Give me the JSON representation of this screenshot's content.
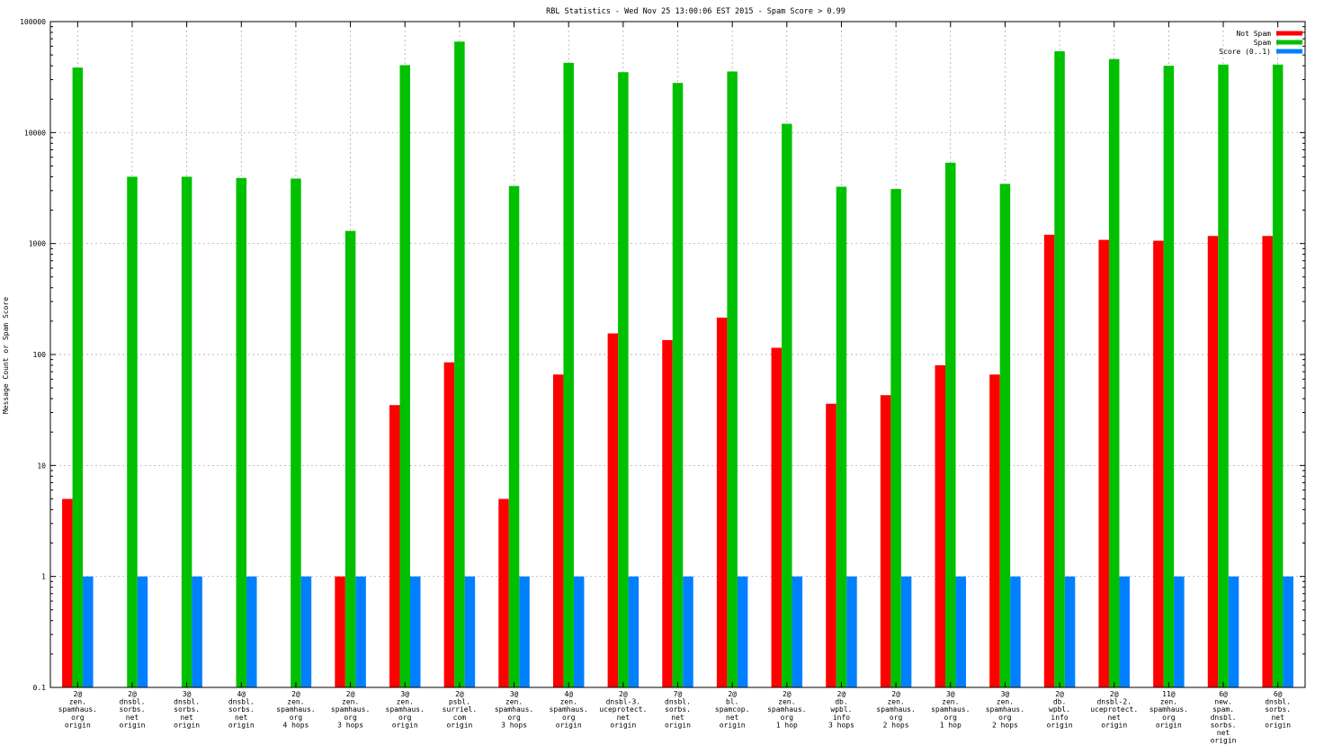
{
  "chart_data": {
    "type": "bar",
    "title": "RBL Statistics - Wed Nov 25 13:00:06 EST 2015 - Spam Score > 0.99",
    "xlabel": "",
    "ylabel": "Message Count or Spam Score",
    "yscale": "log",
    "ylim": [
      0.1,
      100000
    ],
    "yticks": [
      0.1,
      1,
      10,
      100,
      1000,
      10000,
      100000
    ],
    "ytick_labels": [
      "0.1",
      "1",
      "10",
      "100",
      "1000",
      "10000",
      "100000"
    ],
    "grid": true,
    "legend_position": "top-right",
    "categories": [
      [
        "2@",
        "zen.",
        "spamhaus.",
        "org",
        "origin"
      ],
      [
        "2@",
        "dnsbl.",
        "sorbs.",
        "net",
        "origin"
      ],
      [
        "3@",
        "dnsbl.",
        "sorbs.",
        "net",
        "origin"
      ],
      [
        "4@",
        "dnsbl.",
        "sorbs.",
        "net",
        "origin"
      ],
      [
        "2@",
        "zen.",
        "spamhaus.",
        "org",
        "4 hops"
      ],
      [
        "2@",
        "zen.",
        "spamhaus.",
        "org",
        "3 hops"
      ],
      [
        "3@",
        "zen.",
        "spamhaus.",
        "org",
        "origin"
      ],
      [
        "2@",
        "psbl.",
        "surriel.",
        "com",
        "origin"
      ],
      [
        "3@",
        "zen.",
        "spamhaus.",
        "org",
        "3 hops"
      ],
      [
        "4@",
        "zen.",
        "spamhaus.",
        "org",
        "origin"
      ],
      [
        "2@",
        "dnsbl-3.",
        "uceprotect.",
        "net",
        "origin"
      ],
      [
        "7@",
        "dnsbl.",
        "sorbs.",
        "net",
        "origin"
      ],
      [
        "2@",
        "bl.",
        "spamcop.",
        "net",
        "origin"
      ],
      [
        "2@",
        "zen.",
        "spamhaus.",
        "org",
        "1 hop"
      ],
      [
        "2@",
        "db.",
        "wpbl.",
        "info",
        "3 hops"
      ],
      [
        "2@",
        "zen.",
        "spamhaus.",
        "org",
        "2 hops"
      ],
      [
        "3@",
        "zen.",
        "spamhaus.",
        "org",
        "1 hop"
      ],
      [
        "3@",
        "zen.",
        "spamhaus.",
        "org",
        "2 hops"
      ],
      [
        "2@",
        "db.",
        "wpbl.",
        "info",
        "origin"
      ],
      [
        "2@",
        "dnsbl-2.",
        "uceprotect.",
        "net",
        "origin"
      ],
      [
        "11@",
        "zen.",
        "spamhaus.",
        "org",
        "origin"
      ],
      [
        "6@",
        "new.",
        "spam.",
        "dnsbl.",
        "sorbs.",
        "net",
        "origin"
      ],
      [
        "6@",
        "dnsbl.",
        "sorbs.",
        "net",
        "origin"
      ]
    ],
    "series": [
      {
        "name": "Not Spam",
        "color": "#ff0000",
        "values": [
          5,
          null,
          null,
          null,
          null,
          1,
          35,
          85,
          5,
          66,
          155,
          135,
          215,
          115,
          36,
          43,
          80,
          66,
          1200,
          1080,
          1060,
          1170,
          1170
        ]
      },
      {
        "name": "Spam",
        "color": "#00c000",
        "values": [
          38500,
          4000,
          4000,
          3900,
          3850,
          1300,
          40500,
          66000,
          3300,
          42500,
          35000,
          28000,
          35500,
          12000,
          3250,
          3100,
          5350,
          3450,
          54000,
          46000,
          40000,
          41000,
          41000
        ]
      },
      {
        "name": "Score (0..1)",
        "color": "#0080ff",
        "values": [
          1,
          1,
          1,
          1,
          1,
          1,
          1,
          1,
          1,
          1,
          1,
          1,
          1,
          1,
          1,
          1,
          1,
          1,
          1,
          1,
          1,
          1,
          1
        ]
      }
    ]
  }
}
